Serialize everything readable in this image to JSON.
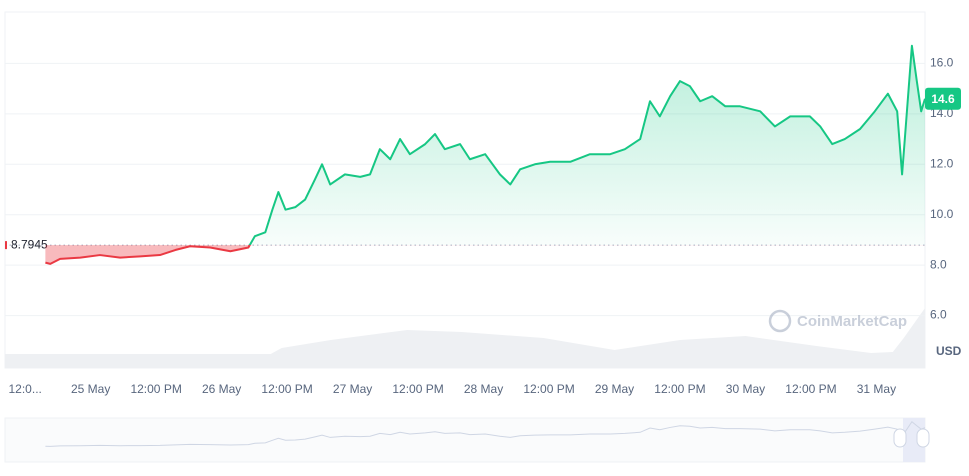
{
  "chart_data": {
    "type": "line",
    "x": [
      3.7,
      4.6,
      6.4,
      10.1,
      13.7,
      17.4,
      21.1,
      24.7,
      27.5,
      30.2,
      33.9,
      37.6,
      40.9,
      42.1,
      44.0,
      45.3,
      46.4,
      47.7,
      49.5,
      51.3,
      53.1,
      54.4,
      55.9,
      58.6,
      61.4,
      63.2,
      65.0,
      66.9,
      68.7,
      70.5,
      73.3,
      75.1,
      76.9,
      79.7,
      81.5,
      84.3,
      87.0,
      88.9,
      90.7,
      93.4,
      96.2,
      99.9,
      103.5,
      107.2,
      109.9,
      112.7,
      114.5,
      116.3,
      118.2,
      120.0,
      121.8,
      123.7,
      125.9,
      128.3,
      131.0,
      134.7,
      137.4,
      140.2,
      143.8,
      145.7,
      147.9,
      150.2,
      153.0,
      155.7,
      158.1,
      159.8,
      160.7,
      161.2,
      162.5,
      163.4,
      164.2,
      164.9
    ],
    "series": [
      {
        "values": [
          8.1,
          8.05,
          8.25,
          8.3,
          8.4,
          8.3,
          8.35,
          8.4,
          8.6,
          8.75,
          8.7,
          8.55,
          8.7,
          9.15,
          9.3,
          10.2,
          10.9,
          10.2,
          10.3,
          10.6,
          11.4,
          12.0,
          11.2,
          11.6,
          11.5,
          11.6,
          12.6,
          12.2,
          13.0,
          12.4,
          12.8,
          13.2,
          12.6,
          12.8,
          12.2,
          12.4,
          11.6,
          11.2,
          11.8,
          12.0,
          12.1,
          12.1,
          12.4,
          12.4,
          12.6,
          13.0,
          14.5,
          13.9,
          14.7,
          15.3,
          15.1,
          14.5,
          14.7,
          14.3,
          14.3,
          14.1,
          13.5,
          13.9,
          13.9,
          13.5,
          12.8,
          13.0,
          13.4,
          14.1,
          14.8,
          14.1,
          11.6,
          13.0,
          16.7,
          15.3,
          14.1,
          14.6
        ],
        "up_color": "#16c784",
        "down_color": "#ea3943"
      }
    ],
    "baseline": 8.7945,
    "current_price": 14.6,
    "currency": "USD",
    "watermark": "CoinMarketCap",
    "volume": {
      "x": [
        -3.7,
        45,
        47,
        56,
        70,
        80,
        95,
        108,
        120,
        132,
        145,
        155,
        159,
        161,
        164.9
      ],
      "values": [
        14,
        14,
        20,
        28,
        38,
        36,
        30,
        18,
        28,
        32,
        22,
        15,
        16,
        30,
        60
      ],
      "ylim": [
        0,
        100
      ],
      "color": "#eef0f3"
    },
    "xlim": [
      -3.7,
      164.9
    ],
    "xticks": [
      {
        "value": 0,
        "label": "12:0..."
      },
      {
        "value": 12,
        "label": "25 May"
      },
      {
        "value": 24,
        "label": "12:00 PM"
      },
      {
        "value": 36,
        "label": "26 May"
      },
      {
        "value": 48,
        "label": "12:00 PM"
      },
      {
        "value": 60,
        "label": "27 May"
      },
      {
        "value": 72,
        "label": "12:00 PM"
      },
      {
        "value": 84,
        "label": "28 May"
      },
      {
        "value": 96,
        "label": "12:00 PM"
      },
      {
        "value": 108,
        "label": "29 May"
      },
      {
        "value": 120,
        "label": "12:00 PM"
      },
      {
        "value": 132,
        "label": "30 May"
      },
      {
        "value": 144,
        "label": "12:00 PM"
      },
      {
        "value": 156,
        "label": "31 May"
      }
    ],
    "ylim": [
      4,
      18
    ],
    "yticks": [
      {
        "value": 6,
        "label": "6.0"
      },
      {
        "value": 8,
        "label": "8.0"
      },
      {
        "value": 10,
        "label": "10.0"
      },
      {
        "value": 12,
        "label": "12.0"
      },
      {
        "value": 14,
        "label": "14.0"
      },
      {
        "value": 16,
        "label": "16.0"
      }
    ],
    "grid": true
  }
}
